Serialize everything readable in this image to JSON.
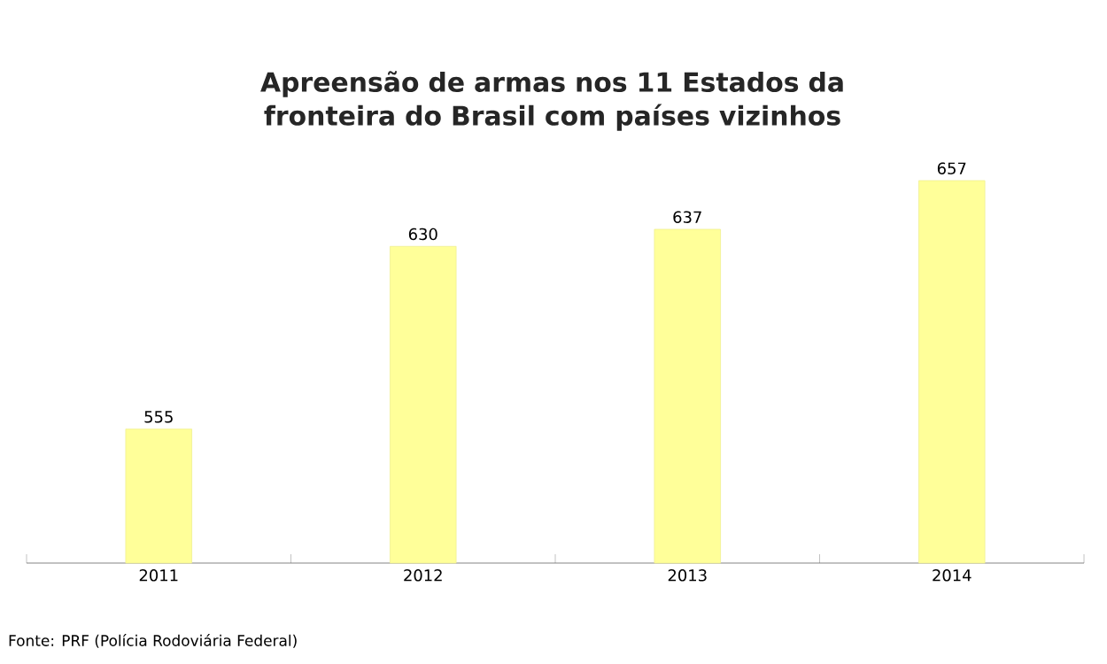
{
  "chart_data": {
    "type": "bar",
    "title": "Apreensão de armas nos 11 Estados da\nfronteira do Brasil com países vizinhos",
    "categories": [
      "2011",
      "2012",
      "2013",
      "2014"
    ],
    "values": [
      555,
      630,
      637,
      657
    ],
    "color": "#ffff99",
    "ylim": [
      500,
      657
    ],
    "data_labels": true,
    "tick_labels": "x",
    "annotations": [
      "Fonte: PRF (Polícia Rodoviária Federal)"
    ]
  }
}
